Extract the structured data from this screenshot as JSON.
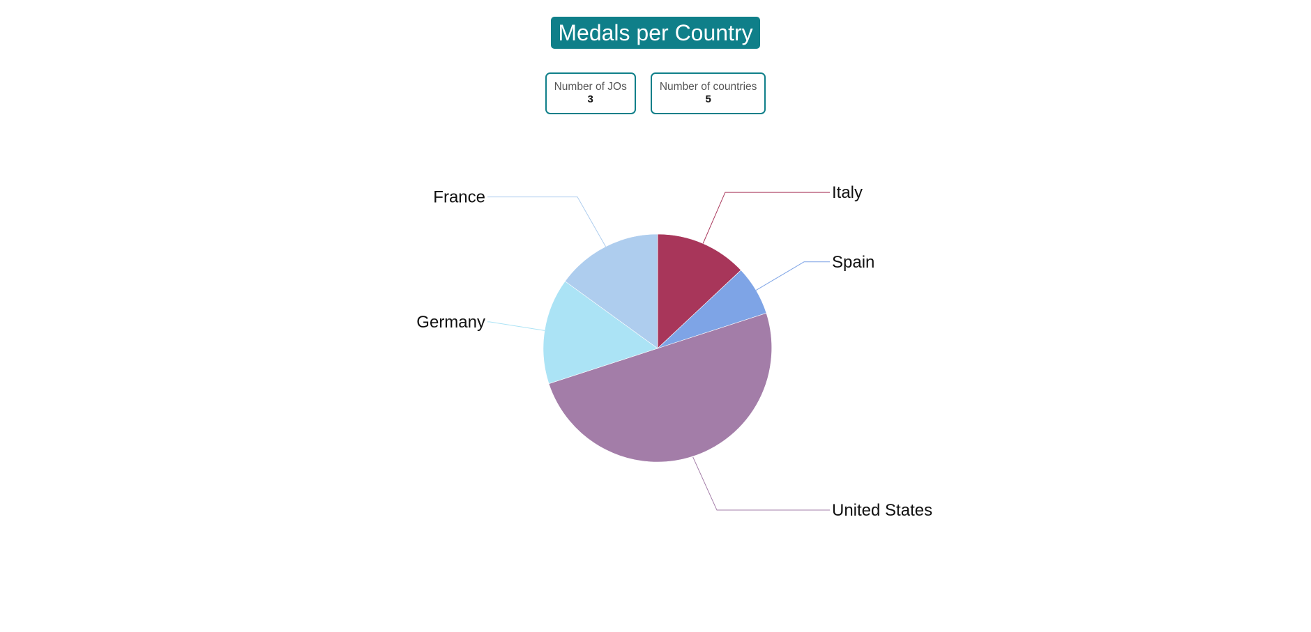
{
  "header": {
    "title": "Medals per Country"
  },
  "stats": [
    {
      "label": "Number of JOs",
      "value": "3"
    },
    {
      "label": "Number of countries",
      "value": "5"
    }
  ],
  "chart_data": {
    "type": "pie",
    "title": "",
    "start_angle_deg": 0,
    "direction": "clockwise",
    "legend": "none",
    "labels_position": "outside-with-leader-lines",
    "slices": [
      {
        "label": "Italy",
        "value": 13,
        "color": "#a8365a"
      },
      {
        "label": "Spain",
        "value": 7,
        "color": "#7ea4e6"
      },
      {
        "label": "United States",
        "value": 50,
        "color": "#a37da8"
      },
      {
        "label": "Germany",
        "value": 15,
        "color": "#abe3f5"
      },
      {
        "label": "France",
        "value": 15,
        "color": "#aecdee"
      }
    ]
  }
}
